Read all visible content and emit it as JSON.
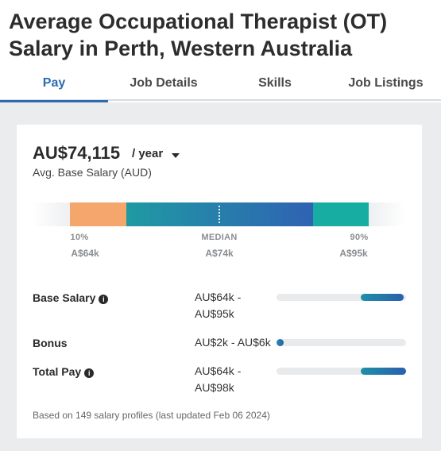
{
  "page": {
    "title": "Average Occupational Therapist (OT) Salary in Perth, Western Australia"
  },
  "tabs": [
    {
      "label": "Pay",
      "active": true
    },
    {
      "label": "Job Details",
      "active": false
    },
    {
      "label": "Skills",
      "active": false
    },
    {
      "label": "Job Listings",
      "active": false
    }
  ],
  "summary": {
    "salary": "AU$74,115",
    "period": "/ year",
    "caption": "Avg. Base Salary (AUD)"
  },
  "distribution": {
    "low": {
      "label": "10%",
      "value": "A$64k"
    },
    "median": {
      "label": "MEDIAN",
      "value": "A$74k"
    },
    "high": {
      "label": "90%",
      "value": "A$95k"
    }
  },
  "pay_rows": [
    {
      "label": "Base Salary",
      "range_line1": "AU$64k -",
      "range_line2": "AU$95k",
      "has_info": true,
      "fill_start": 0.65,
      "fill_end": 0.98
    },
    {
      "label": "Bonus",
      "range_line1": "AU$2k - AU$6k",
      "range_line2": "",
      "has_info": false,
      "fill_start": 0.0,
      "fill_end": 0.05
    },
    {
      "label": "Total Pay",
      "range_line1": "AU$64k -",
      "range_line2": "AU$98k",
      "has_info": true,
      "fill_start": 0.65,
      "fill_end": 1.0
    }
  ],
  "footnote": "Based on 149 salary profiles (last updated Feb 06 2024)",
  "colors": {
    "accent": "#2b6cb0",
    "low_segment": "#f4a66d",
    "mid_start": "#1f9aa3",
    "mid_end": "#2f62b3",
    "high_segment": "#17ada3"
  },
  "icons": {
    "info": "info-circle-icon",
    "dropdown": "caret-down-icon"
  }
}
